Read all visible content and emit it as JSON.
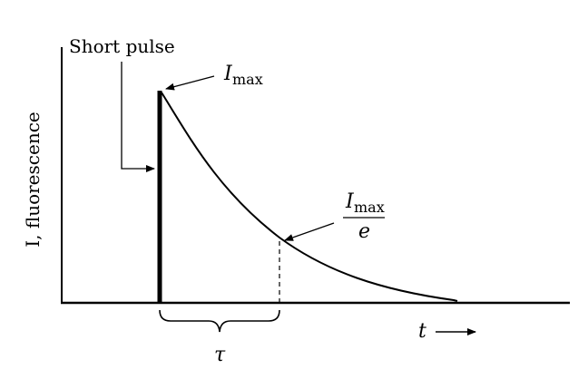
{
  "diagram": {
    "pulse_label": "Short pulse",
    "y_axis_label": "I, fluorescence",
    "x_axis_label": "t",
    "peak_label": {
      "symbol": "I",
      "subscript": "max"
    },
    "fraction_label": {
      "symbol": "I",
      "subscript": "max",
      "denominator": "e"
    },
    "lifetime_label": "τ"
  },
  "colors": {
    "ink": "#000000",
    "background": "#ffffff"
  }
}
